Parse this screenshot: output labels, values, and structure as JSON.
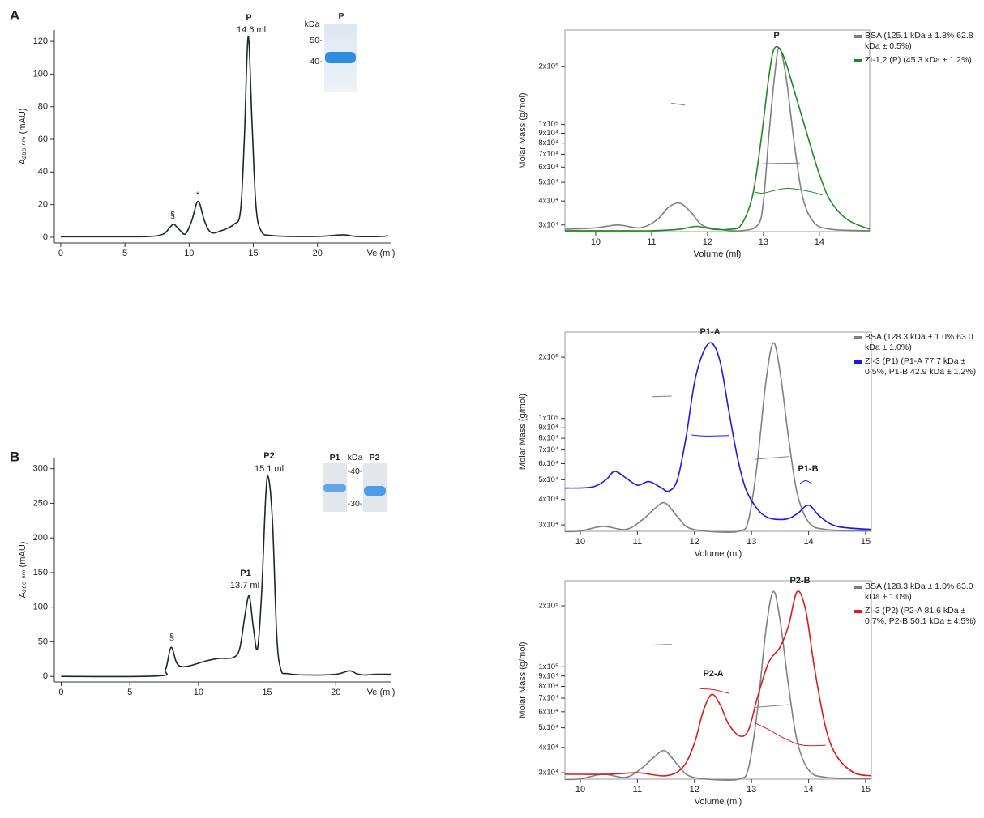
{
  "panels": [
    "A",
    "B"
  ],
  "insets": [
    {
      "texts": [
        {
          "text": "kDa",
          "color": "#222"
        },
        {
          "text": "P",
          "color": "#1e8a1e"
        },
        {
          "text": "50-",
          "color": "#222"
        },
        {
          "text": "40-",
          "color": "#222"
        }
      ]
    },
    {
      "texts": [
        {
          "text": "P1",
          "color": "#1a1ae0"
        },
        {
          "text": "kDa",
          "color": "#222"
        },
        {
          "text": "P2",
          "color": "#e01a1a"
        },
        {
          "text": "-40-",
          "color": "#222"
        },
        {
          "text": "-30-",
          "color": "#222"
        }
      ]
    }
  ],
  "chart_data": [
    {
      "type": "line",
      "x_label": "Ve (ml)",
      "y_label": "A₂₈₀ ₙₘ (mAU)",
      "xlim": [
        -0.5,
        25.7
      ],
      "ylim": [
        -3.5,
        127
      ],
      "xticks": [
        0,
        5,
        10,
        15,
        20
      ],
      "yticks": [
        0,
        20,
        40,
        60,
        80,
        100,
        120
      ],
      "series": [
        {
          "color": "#1c2a22",
          "x": [
            0,
            5,
            7,
            8,
            8.5,
            8.8,
            9.2,
            9.7,
            10.2,
            10.7,
            11.2,
            11.7,
            12.5,
            13.5,
            14,
            14.3,
            14.6,
            14.9,
            15.2,
            15.6,
            16.5,
            20,
            22,
            23,
            25,
            25.5
          ],
          "values": [
            0.3,
            0.3,
            0.5,
            2,
            6,
            8,
            5,
            2,
            10,
            22,
            10,
            3,
            4,
            8,
            16,
            60,
            123,
            70,
            20,
            4,
            1,
            0.5,
            1.5,
            0.5,
            0.5,
            1
          ]
        }
      ],
      "annotations": [
        {
          "text": "P",
          "color": "#1e8a1e"
        },
        {
          "text": "14.6 ml",
          "color": "#222"
        },
        {
          "text": "§",
          "color": "#222"
        },
        {
          "text": "*",
          "color": "#222"
        }
      ]
    },
    {
      "type": "line",
      "log_y": true,
      "x_label": "Volume (ml)",
      "y_label": "Molar Mass (g/mol)",
      "xlim": [
        9.45,
        14.9
      ],
      "ylim": [
        27700,
        310000
      ],
      "xticks": [
        10,
        11,
        12,
        13,
        14
      ],
      "yticks": [
        {
          "value": 30000,
          "label": "3x10⁴"
        },
        {
          "value": 40000,
          "label": "4x10⁴"
        },
        {
          "value": 50000,
          "label": "5x10⁴"
        },
        {
          "value": 60000,
          "label": "6x10⁴"
        },
        {
          "value": 70000,
          "label": "7x10⁴"
        },
        {
          "value": 80000,
          "label": "8x10⁴"
        },
        {
          "value": 90000,
          "label": "9x10⁴"
        },
        {
          "value": 100000,
          "label": "1x10⁵"
        },
        {
          "value": 200000,
          "label": "2x10⁵"
        }
      ],
      "series": [
        {
          "name": "BSA (125.1 kDa ± 1.8% 62.8 kDa ± 0.5%)",
          "color": "#808080",
          "x": [
            9.45,
            10,
            10.4,
            10.8,
            11.1,
            11.3,
            11.5,
            11.7,
            11.9,
            12.2,
            12.6,
            12.9,
            13,
            13.1,
            13.2,
            13.28,
            13.4,
            13.55,
            13.7,
            13.9,
            14.2,
            14.9
          ],
          "values": [
            28500,
            29000,
            30000,
            29000,
            32000,
            37000,
            39000,
            35000,
            30000,
            28500,
            28000,
            30000,
            40000,
            90000,
            180000,
            250000,
            180000,
            80000,
            42000,
            31000,
            28500,
            28000
          ],
          "mass": {
            "x": [
              11.35,
              11.6,
              null,
              12.98,
              13.3,
              13.65
            ],
            "values": [
              129000,
              126000,
              null,
              62500,
              62800,
              63000
            ]
          }
        },
        {
          "name": "ZI-1,2 (P) (45.3 kDa ± 1.2%)",
          "color": "#1e8a1e",
          "x": [
            9.45,
            10,
            10.5,
            11,
            11.5,
            11.8,
            12.1,
            12.4,
            12.6,
            12.8,
            12.95,
            13.1,
            13.2,
            13.35,
            13.55,
            13.8,
            14,
            14.2,
            14.5,
            14.9
          ],
          "values": [
            28000,
            28000,
            28000,
            28000,
            28500,
            29500,
            28500,
            28500,
            30000,
            42000,
            80000,
            180000,
            250000,
            230000,
            150000,
            85000,
            55000,
            40000,
            32000,
            28500
          ],
          "mass": {
            "x": [
              12.85,
              13,
              13.4,
              13.8,
              14.05
            ],
            "values": [
              44500,
              44000,
              46500,
              45000,
              43000
            ]
          }
        }
      ],
      "annotations": [
        {
          "text": "P",
          "color": "#1e8a1e"
        }
      ]
    },
    {
      "type": "line",
      "x_label": "Ve (ml)",
      "y_label": "A₂₈₀ ₙₘ (mAU)",
      "xlim": [
        -0.5,
        24
      ],
      "ylim": [
        -8,
        316
      ],
      "xticks": [
        0,
        5,
        10,
        15,
        20
      ],
      "yticks": [
        0,
        50,
        100,
        150,
        200,
        250,
        300
      ],
      "series": [
        {
          "color": "#1c2a22",
          "x": [
            0,
            7,
            7.6,
            8,
            8.4,
            8.8,
            9.5,
            10.5,
            11.5,
            12.5,
            13,
            13.4,
            13.7,
            14,
            14.3,
            14.6,
            14.9,
            15.1,
            15.4,
            15.7,
            16,
            16.5,
            18,
            20,
            21,
            21.5,
            22,
            23,
            24
          ],
          "values": [
            0,
            0.5,
            10,
            42,
            20,
            14,
            16,
            22,
            26,
            27,
            40,
            90,
            116,
            70,
            40,
            120,
            260,
            287,
            220,
            60,
            10,
            4,
            2,
            3,
            8,
            4,
            2,
            3,
            3
          ]
        }
      ],
      "annotations": [
        {
          "text": "P2",
          "color": "#e01a1a"
        },
        {
          "text": "15.1 ml",
          "color": "#222"
        },
        {
          "text": "P1",
          "color": "#1a1ae0"
        },
        {
          "text": "13.7 ml",
          "color": "#222"
        },
        {
          "text": "§",
          "color": "#222"
        }
      ]
    },
    {
      "type": "line",
      "log_y": true,
      "x_label": "Volume (ml)",
      "y_label": "Molar Mass (g/mol)",
      "xlim": [
        9.73,
        15.1
      ],
      "ylim": [
        27900,
        266000
      ],
      "xticks": [
        10,
        11,
        12,
        13,
        14,
        15
      ],
      "yticks": [
        {
          "value": 30000,
          "label": "3x10⁴"
        },
        {
          "value": 40000,
          "label": "4x10⁴"
        },
        {
          "value": 50000,
          "label": "5x10⁴"
        },
        {
          "value": 60000,
          "label": "6x10⁴"
        },
        {
          "value": 70000,
          "label": "7x10⁴"
        },
        {
          "value": 80000,
          "label": "8x10⁴"
        },
        {
          "value": 90000,
          "label": "9x10⁴"
        },
        {
          "value": 100000,
          "label": "1x10⁵"
        },
        {
          "value": 200000,
          "label": "2x10⁵"
        }
      ],
      "series": [
        {
          "name": "BSA (128.3 kDa ± 1.0% 63.0 kDa ± 1.0%)",
          "color": "#808080",
          "x": [
            9.73,
            10,
            10.4,
            10.8,
            11.1,
            11.3,
            11.48,
            11.7,
            11.9,
            12.3,
            12.8,
            12.95,
            13.1,
            13.25,
            13.38,
            13.5,
            13.65,
            13.8,
            14,
            14.3,
            15.1
          ],
          "values": [
            27800,
            28000,
            29500,
            28500,
            32000,
            36000,
            38500,
            33000,
            29000,
            27800,
            28000,
            32000,
            60000,
            150000,
            235000,
            170000,
            80000,
            43000,
            31000,
            28500,
            28000
          ],
          "mass": {
            "x": [
              11.25,
              11.6,
              null,
              13.05,
              13.35,
              13.65
            ],
            "values": [
              128000,
              129000,
              null,
              63000,
              64000,
              65000
            ]
          }
        },
        {
          "name": "ZI-3 (P1) (P1-A 77.7 kDa ± 0.5%, P1-B 42.9 kDa ± 1.2%)",
          "color": "#1a1ae0",
          "x": [
            9.73,
            10.2,
            10.45,
            10.6,
            10.8,
            11,
            11.2,
            11.4,
            11.55,
            11.7,
            11.85,
            12,
            12.15,
            12.3,
            12.45,
            12.6,
            12.75,
            12.9,
            13.1,
            13.3,
            13.6,
            13.8,
            14,
            14.2,
            14.5,
            15.1
          ],
          "values": [
            45500,
            46000,
            50000,
            55000,
            51000,
            47000,
            49000,
            46000,
            44000,
            50000,
            80000,
            150000,
            210000,
            235000,
            190000,
            110000,
            65000,
            45000,
            36000,
            32500,
            32000,
            34000,
            37500,
            33000,
            29500,
            28500
          ],
          "mass": {
            "x": [
              11.95,
              12.2,
              12.6,
              null,
              13.85,
              13.95,
              14.05
            ],
            "values": [
              83000,
              82000,
              82500,
              null,
              48000,
              49500,
              48000
            ]
          }
        }
      ],
      "annotations": [
        {
          "text": "P1-A",
          "color": "#1a1ae0"
        },
        {
          "text": "P1-B",
          "color": "#1a1ae0"
        }
      ]
    },
    {
      "type": "line",
      "log_y": true,
      "x_label": "Volume (ml)",
      "y_label": "Molar Mass (g/mol)",
      "xlim": [
        9.73,
        15.1
      ],
      "ylim": [
        27900,
        266000
      ],
      "xticks": [
        10,
        11,
        12,
        13,
        14,
        15
      ],
      "yticks": [
        {
          "value": 30000,
          "label": "3x10⁴"
        },
        {
          "value": 40000,
          "label": "4x10⁴"
        },
        {
          "value": 50000,
          "label": "5x10⁴"
        },
        {
          "value": 60000,
          "label": "6x10⁴"
        },
        {
          "value": 70000,
          "label": "7x10⁴"
        },
        {
          "value": 80000,
          "label": "8x10⁴"
        },
        {
          "value": 90000,
          "label": "9x10⁴"
        },
        {
          "value": 100000,
          "label": "1x10⁵"
        },
        {
          "value": 200000,
          "label": "2x10⁵"
        }
      ],
      "series": [
        {
          "name": "BSA (128.3 kDa ± 1.0% 63.0 kDa ± 1.0%)",
          "color": "#808080",
          "x": [
            9.73,
            10,
            10.4,
            10.8,
            11.1,
            11.3,
            11.48,
            11.7,
            11.9,
            12.3,
            12.8,
            12.95,
            13.1,
            13.25,
            13.38,
            13.5,
            13.65,
            13.8,
            14,
            14.3,
            15.1
          ],
          "values": [
            27800,
            28000,
            29500,
            28500,
            32000,
            36000,
            38500,
            33000,
            29000,
            27800,
            28000,
            32000,
            60000,
            150000,
            235000,
            170000,
            80000,
            43000,
            31000,
            28500,
            28000
          ],
          "mass": {
            "x": [
              11.25,
              11.6,
              null,
              13.05,
              13.35,
              13.65
            ],
            "values": [
              128000,
              129000,
              null,
              63000,
              64000,
              65000
            ]
          }
        },
        {
          "name": "ZI-3 (P2) (P2-A 81.6 kDa ± 0.7%, P2-B 50.1 kDa ± 4.5%)",
          "color": "#e01a1a",
          "x": [
            9.73,
            10.5,
            11,
            11.5,
            11.8,
            12,
            12.15,
            12.3,
            12.45,
            12.6,
            12.8,
            12.95,
            13.1,
            13.3,
            13.5,
            13.65,
            13.8,
            13.95,
            14.1,
            14.3,
            14.5,
            14.8,
            15.1
          ],
          "values": [
            29500,
            29500,
            30000,
            29000,
            32000,
            42000,
            60000,
            73000,
            65000,
            52000,
            45500,
            49000,
            70000,
            105000,
            125000,
            160000,
            235000,
            190000,
            100000,
            50000,
            36000,
            30000,
            29000
          ],
          "mass": {
            "x": [
              12.1,
              12.35,
              12.6,
              null,
              13.05,
              13.3,
              13.6,
              13.9,
              14.3
            ],
            "values": [
              78000,
              77000,
              74000,
              null,
              53000,
              49000,
              44000,
              41000,
              41000
            ]
          }
        }
      ],
      "annotations": [
        {
          "text": "P2-A",
          "color": "#e01a1a"
        },
        {
          "text": "P2-B",
          "color": "#e01a1a"
        }
      ]
    }
  ]
}
